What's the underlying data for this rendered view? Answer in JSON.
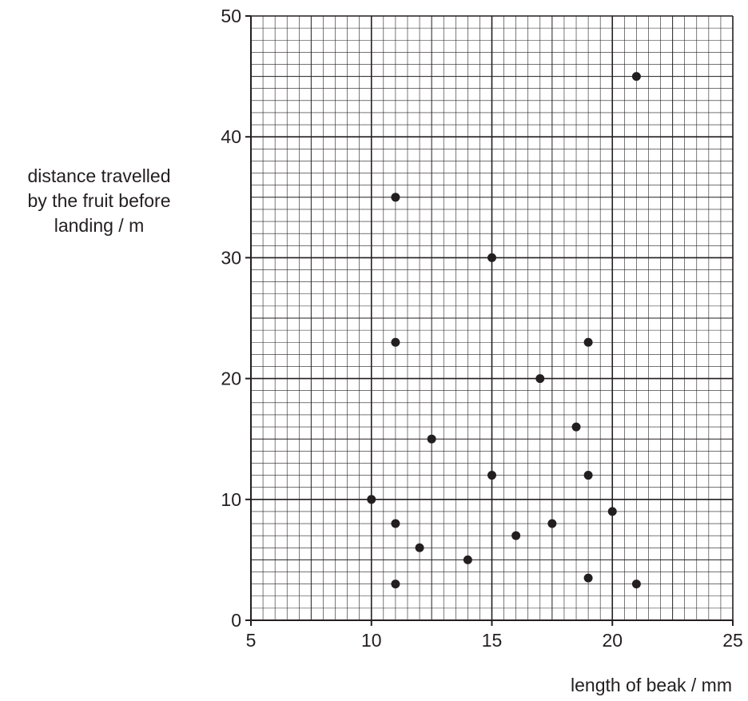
{
  "chart_data": {
    "type": "scatter",
    "title": "",
    "xlabel": "length of beak / mm",
    "ylabel_lines": [
      "distance travelled",
      "by the fruit before",
      "landing / m"
    ],
    "xlim": [
      5,
      25
    ],
    "ylim": [
      0,
      50
    ],
    "x_ticks": [
      5,
      10,
      15,
      20,
      25
    ],
    "y_ticks": [
      0,
      10,
      20,
      30,
      40,
      50
    ],
    "x_minor_step": 0.5,
    "y_minor_step": 1,
    "grid": true,
    "marker_color": "#231f20",
    "grid_color": "#231f20",
    "points": [
      {
        "x": 21,
        "y": 45
      },
      {
        "x": 11,
        "y": 35
      },
      {
        "x": 15,
        "y": 30
      },
      {
        "x": 11,
        "y": 23
      },
      {
        "x": 19,
        "y": 23
      },
      {
        "x": 17,
        "y": 20
      },
      {
        "x": 18.5,
        "y": 16
      },
      {
        "x": 12.5,
        "y": 15
      },
      {
        "x": 15,
        "y": 12
      },
      {
        "x": 19,
        "y": 12
      },
      {
        "x": 10,
        "y": 10
      },
      {
        "x": 20,
        "y": 9
      },
      {
        "x": 11,
        "y": 8
      },
      {
        "x": 17.5,
        "y": 8
      },
      {
        "x": 16,
        "y": 7
      },
      {
        "x": 12,
        "y": 6
      },
      {
        "x": 14,
        "y": 5
      },
      {
        "x": 19,
        "y": 3.5
      },
      {
        "x": 11,
        "y": 3
      },
      {
        "x": 21,
        "y": 3
      }
    ]
  }
}
